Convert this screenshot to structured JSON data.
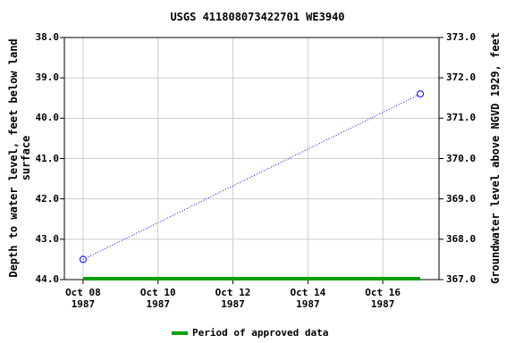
{
  "chart_data": {
    "type": "line",
    "title": "USGS 411808073422701 WE3940",
    "y_label": "Depth to water level, feet below land surface",
    "y2_label": "Groundwater level above NGVD 1929, feet",
    "xlim": [
      "1987-10-07T12:00Z",
      "1987-10-17T12:00Z"
    ],
    "xticks": [
      {
        "value": "1987-10-08",
        "label": "Oct 08\n1987"
      },
      {
        "value": "1987-10-10",
        "label": "Oct 10\n1987"
      },
      {
        "value": "1987-10-12",
        "label": "Oct 12\n1987"
      },
      {
        "value": "1987-10-14",
        "label": "Oct 14\n1987"
      },
      {
        "value": "1987-10-16",
        "label": "Oct 16\n1987"
      }
    ],
    "ylim": [
      38,
      44
    ],
    "yticks": [
      {
        "value": 38,
        "label": "38.0"
      },
      {
        "value": 39,
        "label": "39.0"
      },
      {
        "value": 40,
        "label": "40.0"
      },
      {
        "value": 41,
        "label": "41.0"
      },
      {
        "value": 42,
        "label": "42.0"
      },
      {
        "value": 43,
        "label": "43.0"
      },
      {
        "value": 44,
        "label": "44.0"
      }
    ],
    "y2lim": [
      373,
      367
    ],
    "y2ticks": [
      {
        "value": 373,
        "label": "373.0"
      },
      {
        "value": 372,
        "label": "372.0"
      },
      {
        "value": 371,
        "label": "371.0"
      },
      {
        "value": 370,
        "label": "370.0"
      },
      {
        "value": 369,
        "label": "369.0"
      },
      {
        "value": 368,
        "label": "368.0"
      },
      {
        "value": 367,
        "label": "367.0"
      }
    ],
    "grid": true,
    "series": [
      {
        "color": "#0000ff",
        "x": [
          "1987-10-08",
          "1987-10-17"
        ],
        "values": [
          43.5,
          39.4
        ]
      }
    ],
    "approved_period": {
      "name": "Period of approved data",
      "color": "#00a000",
      "start": "1987-10-08",
      "end": "1987-10-17"
    }
  }
}
